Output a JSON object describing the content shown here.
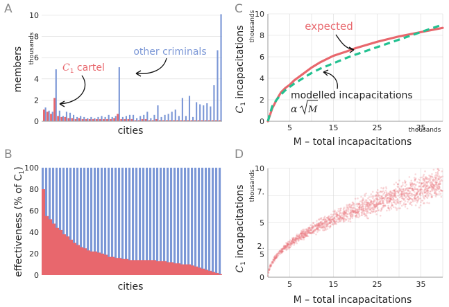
{
  "panel_letters": [
    "A",
    "B",
    "C",
    "D"
  ],
  "colors": {
    "cartel": "#e8676d",
    "other": "#7b97d6",
    "model": "#22c190",
    "scatter": "#e8767c",
    "axis": "#555555",
    "grid": "#d9d9d9",
    "text": "#222222"
  },
  "chart_data": [
    {
      "panel": "A",
      "type": "bar",
      "title": "",
      "xlabel": "cities",
      "ylabel": "members",
      "yunit": "thousands",
      "ylim": [
        0,
        10
      ],
      "yticks": [
        "0",
        "2",
        "4",
        "6",
        "8",
        "10"
      ],
      "annotations": {
        "cartel_label": "C",
        "cartel_sub": "1",
        "cartel_rest": " cartel",
        "other_label": "other criminals"
      },
      "series": [
        {
          "name": "other criminals",
          "values": [
            1.3,
            1.0,
            0.9,
            4.9,
            1.0,
            0.5,
            0.9,
            0.8,
            0.6,
            0.4,
            0.5,
            0.4,
            0.3,
            0.4,
            0.3,
            0.4,
            0.5,
            0.4,
            0.6,
            0.4,
            0.5,
            5.1,
            0.4,
            0.5,
            0.6,
            0.6,
            0.3,
            0.5,
            0.6,
            0.9,
            0.3,
            0.6,
            1.5,
            0.4,
            0.6,
            0.7,
            0.9,
            1.1,
            0.5,
            2.2,
            0.5,
            2.4,
            0.4,
            1.8,
            1.6,
            1.5,
            1.7,
            1.4,
            3.4,
            6.7,
            10.1
          ]
        },
        {
          "name": "C1 cartel",
          "values": [
            1.1,
            0.9,
            0.7,
            2.2,
            0.5,
            0.4,
            0.4,
            0.3,
            0.3,
            0.2,
            0.3,
            0.2,
            0.2,
            0.2,
            0.2,
            0.2,
            0.2,
            0.2,
            0.2,
            0.2,
            0.3,
            0.7,
            0.2,
            0.2,
            0.2,
            0.2,
            0.1,
            0.1,
            0.2,
            0.2,
            0.1,
            0.1,
            0.2,
            0.1,
            0.1,
            0.1,
            0.1,
            0.1,
            0.1,
            0.1,
            0.1,
            0.1,
            0.1,
            0.1,
            0.1,
            0.1,
            0.1,
            0.1,
            0.1,
            0.1,
            0.1
          ]
        }
      ]
    },
    {
      "panel": "B",
      "type": "bar",
      "title": "",
      "xlabel": "cities",
      "ylabel": "effectiveness (% of C",
      "ylabel_sub": "1",
      "ylabel_end": ")",
      "ylim": [
        0,
        100
      ],
      "yticks": [
        "0",
        "20",
        "40",
        "60",
        "80",
        "100"
      ],
      "series": [
        {
          "name": "other",
          "values": [
            100
          ]
        },
        {
          "name": "C1 cartel",
          "values": [
            80,
            55,
            52,
            48,
            44,
            42,
            38,
            36,
            33,
            30,
            28,
            26,
            25,
            23,
            22,
            22,
            21,
            20,
            19,
            17,
            17,
            16,
            16,
            15,
            15,
            14,
            14,
            14,
            14,
            14,
            14,
            14,
            14,
            13,
            13,
            13,
            12,
            12,
            11,
            11,
            10,
            10,
            10,
            9,
            8,
            7,
            6,
            5,
            4,
            3,
            2,
            1
          ]
        }
      ]
    },
    {
      "panel": "C",
      "type": "line",
      "title": "",
      "xlabel": "M – total incapacitations",
      "ylabel": "C",
      "ylabel_sub": "1",
      "ylabel_rest": " incapacitations",
      "yunit": "thousands",
      "xunit": "thousands",
      "xlim": [
        0,
        40
      ],
      "ylim": [
        0,
        10
      ],
      "xticks": [
        "5",
        "15",
        "25",
        "35"
      ],
      "yticks": [
        "0",
        "2",
        "4",
        "6",
        "8",
        "10"
      ],
      "annotations": {
        "expected_label": "expected",
        "model_label": "modelled incapacitations",
        "formula_alpha": "α",
        "formula_var": "M"
      },
      "series": [
        {
          "name": "expected",
          "x": [
            0,
            1,
            2,
            3,
            4,
            5,
            6,
            8,
            10,
            12,
            15,
            18,
            20,
            25,
            30,
            35,
            40
          ],
          "y": [
            0,
            1.2,
            2.0,
            2.7,
            3.1,
            3.4,
            3.8,
            4.4,
            5.0,
            5.5,
            6.1,
            6.5,
            6.8,
            7.4,
            7.9,
            8.3,
            8.7
          ]
        },
        {
          "name": "modelled incapacitations",
          "x": [
            0,
            1,
            2,
            3,
            4,
            5,
            6,
            8,
            10,
            12,
            15,
            18,
            20,
            25,
            30,
            35,
            40
          ],
          "y": [
            0,
            1.4,
            2.0,
            2.5,
            2.9,
            3.2,
            3.5,
            4.0,
            4.5,
            4.9,
            5.4,
            5.9,
            6.2,
            6.9,
            7.6,
            8.3,
            9.0
          ]
        }
      ]
    },
    {
      "panel": "D",
      "type": "scatter",
      "title": "",
      "xlabel": "M – total incapacitations",
      "ylabel": "C",
      "ylabel_sub": "1",
      "ylabel_rest": " incapacitations",
      "yunit": "thousands",
      "xlim": [
        0,
        40
      ],
      "ylim": [
        0,
        10
      ],
      "xticks": [
        "5",
        "15",
        "25",
        "35"
      ],
      "yticks": [
        "0",
        "2.",
        "5",
        "5",
        "7.",
        "10"
      ],
      "trend": {
        "a": 1.375,
        "power": 0.5
      },
      "spread": "widening band, ~0.4 at M=5 to ~1.2 at M=40"
    }
  ]
}
